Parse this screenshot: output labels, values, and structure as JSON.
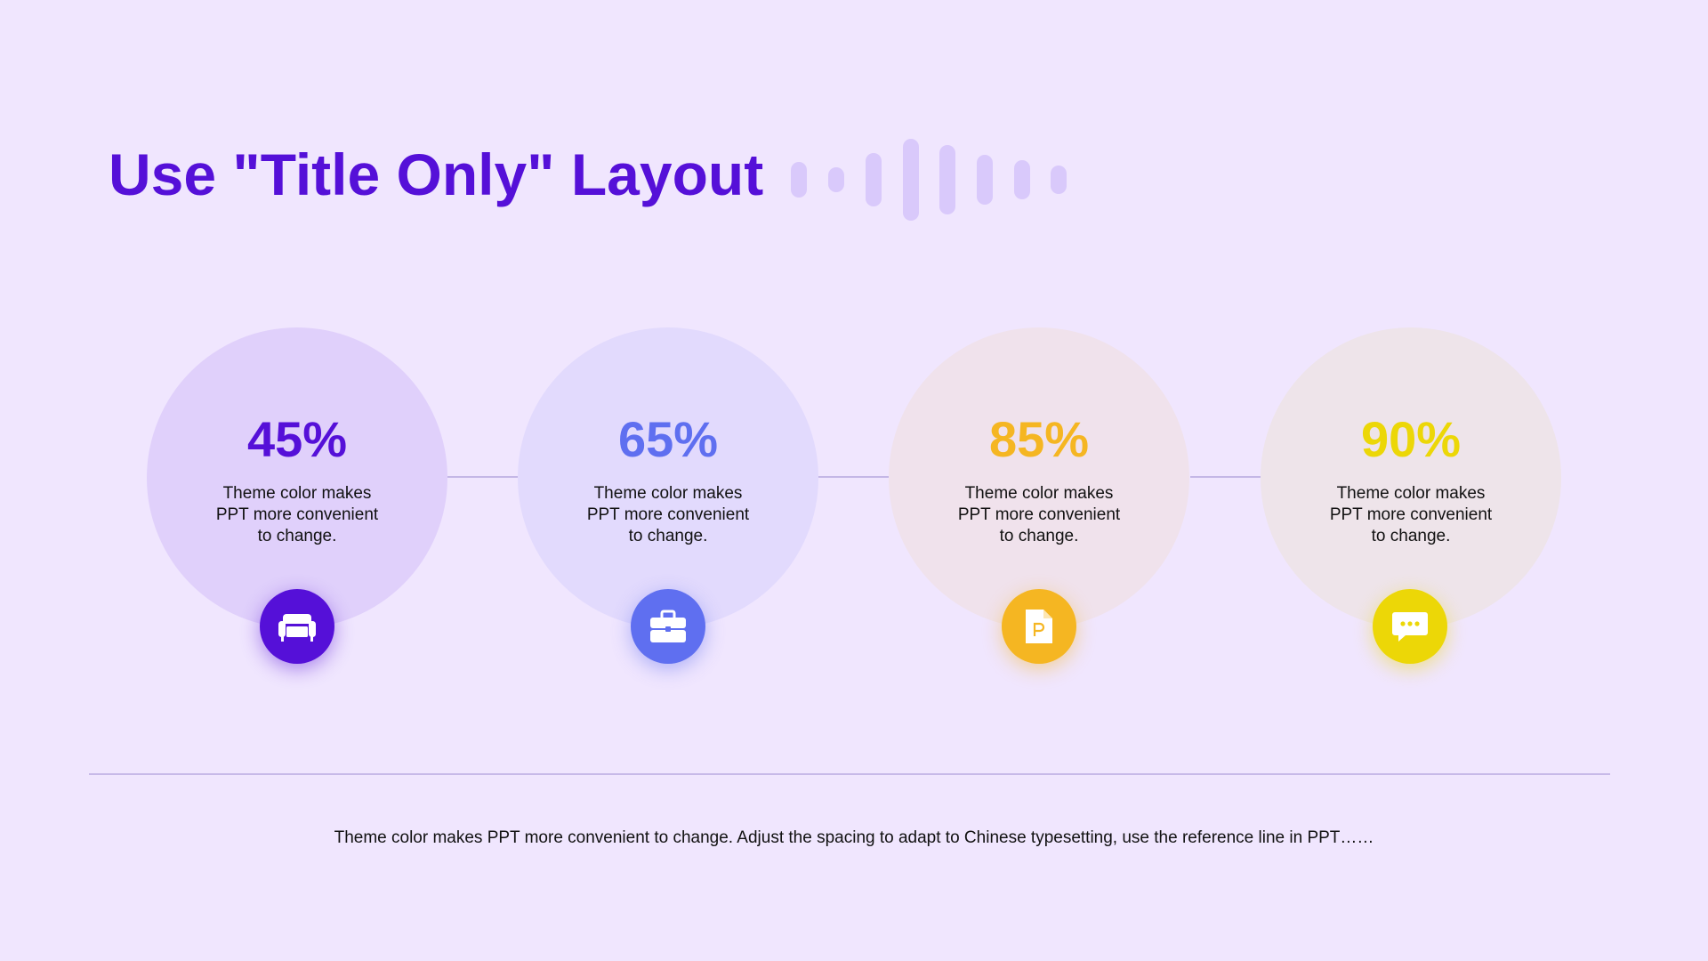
{
  "slide": {
    "title": "Use \"Title Only\" Layout",
    "footer_text": "Theme color makes PPT more convenient  to change. Adjust the spacing to adapt to Chinese  typesetting, use the reference line in PPT……"
  },
  "colors": {
    "background": "#f0e6fe",
    "title": "#5510d8",
    "decor_bars": "#d9c9fb",
    "divider": "#c7b9e8"
  },
  "items": [
    {
      "value": "45%",
      "description": "Theme color makes PPT more convenient to change.",
      "accent": "#5510d8",
      "circle_fill": "#e0d0fb",
      "icon": "armchair-icon"
    },
    {
      "value": "65%",
      "description": "Theme color makes PPT more convenient to change.",
      "accent": "#5f6ff0",
      "circle_fill": "#e2dafd",
      "icon": "briefcase-icon"
    },
    {
      "value": "85%",
      "description": "Theme color makes PPT more convenient to change.",
      "accent": "#f5b622",
      "circle_fill": "#f0e2ec",
      "icon": "document-p-icon"
    },
    {
      "value": "90%",
      "description": "Theme color makes PPT more convenient to change.",
      "accent": "#ecd707",
      "circle_fill": "#eee4ea",
      "icon": "chat-bubble-icon"
    }
  ]
}
